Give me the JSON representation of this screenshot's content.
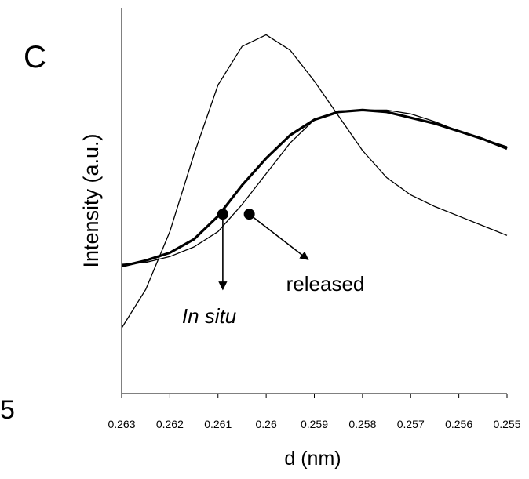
{
  "panel_label": "C",
  "stray_text": "5",
  "chart_data": {
    "type": "line",
    "title": "",
    "xlabel": "d (nm)",
    "ylabel": "Intensity (a.u.)",
    "xlim": [
      0.263,
      0.255
    ],
    "x_reversed": true,
    "x_ticks": [
      "0.263",
      "0.262",
      "0.261",
      "0.26",
      "0.259",
      "0.258",
      "0.257",
      "0.256",
      "0.255"
    ],
    "y_ticks": [],
    "grid": false,
    "legend": "none",
    "ylim": [
      0,
      100
    ],
    "series": [
      {
        "style": "thick",
        "points": [
          [
            0.263,
            33
          ],
          [
            0.2625,
            34.5
          ],
          [
            0.262,
            36.5
          ],
          [
            0.2615,
            40
          ],
          [
            0.261,
            46
          ],
          [
            0.2605,
            54
          ],
          [
            0.26,
            61
          ],
          [
            0.2595,
            67
          ],
          [
            0.259,
            71
          ],
          [
            0.2585,
            73
          ],
          [
            0.258,
            73.5
          ],
          [
            0.2575,
            73
          ],
          [
            0.257,
            71.5
          ],
          [
            0.2565,
            70
          ],
          [
            0.256,
            68
          ],
          [
            0.2555,
            66
          ],
          [
            0.255,
            63.5
          ]
        ]
      },
      {
        "style": "thin",
        "points": [
          [
            0.263,
            33.5
          ],
          [
            0.2625,
            34
          ],
          [
            0.262,
            35.5
          ],
          [
            0.2615,
            38
          ],
          [
            0.261,
            42
          ],
          [
            0.2605,
            49
          ],
          [
            0.26,
            57
          ],
          [
            0.2595,
            65
          ],
          [
            0.259,
            71
          ],
          [
            0.2585,
            73.3
          ],
          [
            0.258,
            73.5
          ],
          [
            0.2575,
            73.5
          ],
          [
            0.257,
            72.5
          ],
          [
            0.2565,
            70.5
          ],
          [
            0.256,
            68
          ],
          [
            0.2555,
            66
          ],
          [
            0.255,
            64
          ]
        ]
      },
      {
        "style": "thin",
        "points": [
          [
            0.263,
            17
          ],
          [
            0.2625,
            27
          ],
          [
            0.262,
            42
          ],
          [
            0.2615,
            62
          ],
          [
            0.261,
            80
          ],
          [
            0.2605,
            90
          ],
          [
            0.26,
            93
          ],
          [
            0.2595,
            89
          ],
          [
            0.259,
            81
          ],
          [
            0.2585,
            72
          ],
          [
            0.258,
            63
          ],
          [
            0.2575,
            56
          ],
          [
            0.257,
            51.5
          ],
          [
            0.2565,
            48.5
          ],
          [
            0.256,
            46
          ],
          [
            0.2555,
            43.5
          ],
          [
            0.255,
            41
          ]
        ]
      }
    ],
    "annotations": [
      {
        "text": "In situ",
        "italic": true,
        "marker_x": 0.2609,
        "marker_y": 46.5
      },
      {
        "text": "released",
        "italic": false,
        "marker_x": 0.26035,
        "marker_y": 46.5
      }
    ]
  }
}
